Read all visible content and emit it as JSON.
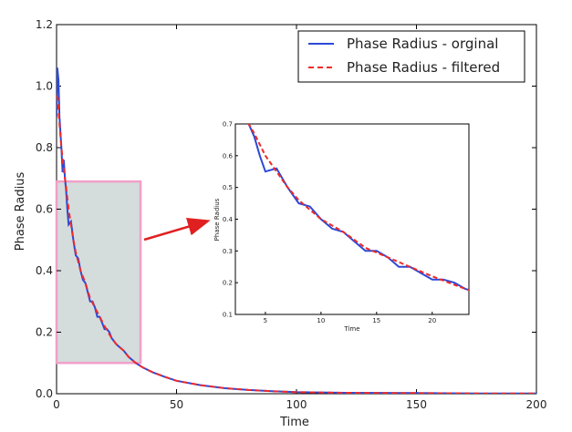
{
  "chart_data": {
    "type": "line",
    "xlabel": "Time",
    "ylabel": "Phase Radius",
    "xlim": [
      0,
      200
    ],
    "ylim": [
      0,
      1.2
    ],
    "x_ticks": [
      "0",
      "50",
      "100",
      "150",
      "200"
    ],
    "y_ticks": [
      "0.0",
      "0.2",
      "0.4",
      "0.6",
      "0.8",
      "1.0",
      "1.2"
    ],
    "legend_position": "top-right",
    "series": [
      {
        "name": "Phase Radius - orginal",
        "color": "#2d49d6",
        "style": "solid",
        "x": [
          0,
          0.3,
          0.8,
          1.2,
          2,
          2.5,
          3,
          3.5,
          4,
          4.5,
          5,
          6,
          7,
          8,
          9,
          10,
          11,
          12,
          13,
          14,
          15,
          16,
          17,
          18,
          19,
          20,
          21,
          22,
          23,
          25,
          28,
          30,
          33,
          36,
          40,
          45,
          50,
          60,
          70,
          80,
          90,
          100,
          120,
          150,
          175,
          200
        ],
        "y": [
          0.9,
          1.06,
          1.02,
          0.9,
          0.8,
          0.72,
          0.76,
          0.7,
          0.66,
          0.6,
          0.55,
          0.56,
          0.5,
          0.45,
          0.44,
          0.4,
          0.37,
          0.36,
          0.33,
          0.3,
          0.3,
          0.28,
          0.25,
          0.25,
          0.23,
          0.21,
          0.21,
          0.2,
          0.18,
          0.16,
          0.14,
          0.12,
          0.1,
          0.085,
          0.07,
          0.055,
          0.042,
          0.028,
          0.018,
          0.012,
          0.008,
          0.005,
          0.003,
          0.002,
          0.001,
          0.001
        ]
      },
      {
        "name": "Phase Radius - filtered",
        "color": "#ee2a2a",
        "style": "dashed",
        "x": [
          0,
          0.5,
          1,
          2,
          3,
          4,
          5,
          6,
          7,
          8,
          9,
          10,
          12,
          14,
          16,
          18,
          20,
          23,
          25,
          28,
          30,
          33,
          36,
          40,
          45,
          50,
          60,
          70,
          80,
          90,
          100,
          120,
          150,
          175,
          200
        ],
        "y": [
          0.97,
          0.96,
          0.9,
          0.8,
          0.73,
          0.67,
          0.6,
          0.55,
          0.5,
          0.46,
          0.43,
          0.4,
          0.36,
          0.31,
          0.28,
          0.25,
          0.22,
          0.18,
          0.16,
          0.14,
          0.12,
          0.1,
          0.085,
          0.07,
          0.055,
          0.042,
          0.028,
          0.018,
          0.012,
          0.008,
          0.005,
          0.003,
          0.002,
          0.001,
          0.001
        ]
      }
    ],
    "highlight_region": {
      "x": [
        0,
        35
      ],
      "y": [
        0.1,
        0.69
      ]
    },
    "inset": {
      "xlabel": "Time",
      "ylabel": "Phase Radius",
      "xlim": [
        2.3,
        23.3
      ],
      "ylim": [
        0.1,
        0.7
      ],
      "x_ticks": [
        "5",
        "10",
        "15",
        "20"
      ],
      "y_ticks": [
        "0.1",
        "0.2",
        "0.3",
        "0.4",
        "0.5",
        "0.6",
        "0.7"
      ]
    }
  }
}
